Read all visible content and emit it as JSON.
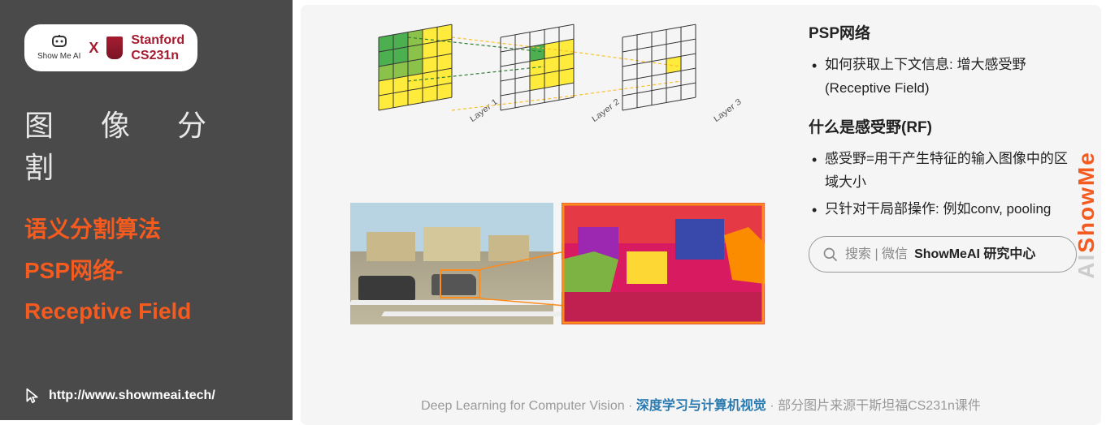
{
  "sidebar": {
    "logo_sub": "Show Me AI",
    "logo_x": "X",
    "stanford_top": "Stanford",
    "stanford_bottom": "CS231n",
    "cn_title": "图 像 分 割",
    "line1": "语义分割算法",
    "line2": "PSP网络-",
    "line3": "Receptive Field",
    "url": "http://www.showmeai.tech/"
  },
  "diagram": {
    "layer1_label": "Layer 1",
    "layer2_label": "Layer 2",
    "layer3_label": "Layer 3",
    "grid1_size": 5,
    "grid2_size": 5,
    "grid3_size": 5,
    "colors": {
      "green": "#4caf50",
      "light_green": "#8bc34a",
      "yellow": "#ffeb3b",
      "stroke": "#333333",
      "dash_green": "#2e7d32",
      "dash_yellow": "#fbc02d"
    }
  },
  "text": {
    "h1": "PSP网络",
    "bullet1": "如何获取上下文信息: 增大感受野(Receptive Field)",
    "h2": "什么是感受野(RF)",
    "bullet2": "感受野=用干产生特征的输入图像中的区域大小",
    "bullet3": "只针对干局部操作: 例如conv, pooling"
  },
  "search": {
    "prefix": "搜索 | 微信",
    "bold": "ShowMeAI 研究中心"
  },
  "footer": {
    "left": "Deep Learning for Computer Vision",
    "mid": "深度学习与计算机视觉",
    "right": "部分图片来源干斯坦福CS231n课件",
    "dot": " · "
  },
  "watermark": {
    "part1": "ShowMe",
    "part2": "AI"
  },
  "palette": {
    "sidebar_bg": "#4a4a4a",
    "orange": "#f55a1e",
    "stanford_red": "#a51c30",
    "main_bg": "#f5f5f5",
    "footer_gray": "#999999",
    "footer_accent": "#2a7ab0",
    "seg_red": "#e63946",
    "seg_purple": "#9c27b0",
    "seg_magenta": "#d81b60",
    "seg_blue": "#3949ab",
    "seg_green": "#7cb342",
    "seg_yellow": "#fdd835",
    "seg_orange": "#fb8c00",
    "street_sky": "#b8d4e3",
    "street_road": "#bfb89e",
    "rf_box": "#ff8c1a"
  }
}
